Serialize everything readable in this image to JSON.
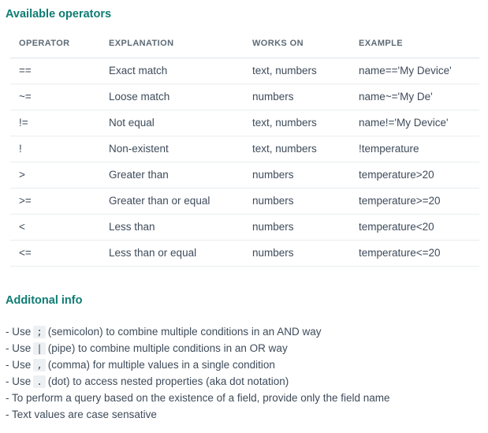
{
  "colors": {
    "accent": "#0e7c74",
    "text": "#3e4b5a",
    "muted_header": "#5d6a76",
    "divider": "#e8edf0",
    "code_background": "#edf0f2"
  },
  "operators_section": {
    "title": "Available operators",
    "table": {
      "headers": [
        "OPERATOR",
        "EXPLANATION",
        "WORKS ON",
        "EXAMPLE"
      ],
      "rows": [
        {
          "operator": "==",
          "explanation": "Exact match",
          "works_on": "text, numbers",
          "example": "name=='My Device'"
        },
        {
          "operator": "~=",
          "explanation": "Loose match",
          "works_on": "numbers",
          "example": "name~='My De'"
        },
        {
          "operator": "!=",
          "explanation": "Not equal",
          "works_on": "text, numbers",
          "example": "name!='My Device'"
        },
        {
          "operator": "!",
          "explanation": "Non-existent",
          "works_on": "text, numbers",
          "example": "!temperature"
        },
        {
          "operator": ">",
          "explanation": "Greater than",
          "works_on": "numbers",
          "example": "temperature>20"
        },
        {
          "operator": ">=",
          "explanation": "Greater than or equal",
          "works_on": "numbers",
          "example": "temperature>=20"
        },
        {
          "operator": "<",
          "explanation": "Less than",
          "works_on": "numbers",
          "example": "temperature<20"
        },
        {
          "operator": "<=",
          "explanation": "Less than or equal",
          "works_on": "numbers",
          "example": "temperature<=20"
        }
      ]
    }
  },
  "additional_section": {
    "title": "Additonal info",
    "notes": [
      {
        "prefix": "- Use",
        "code": ";",
        "suffix": "(semicolon) to combine multiple conditions in an AND way"
      },
      {
        "prefix": "- Use",
        "code": "|",
        "suffix": "(pipe) to combine multiple conditions in an OR way"
      },
      {
        "prefix": "- Use",
        "code": ",",
        "suffix": "(comma) for multiple values in a single condition"
      },
      {
        "prefix": "- Use",
        "code": ".",
        "suffix": "(dot) to access nested properties (aka dot notation)"
      },
      {
        "text": "- To perform a query based on the existence of a field, provide only the field name"
      },
      {
        "text": "- Text values are case sensative"
      }
    ]
  }
}
